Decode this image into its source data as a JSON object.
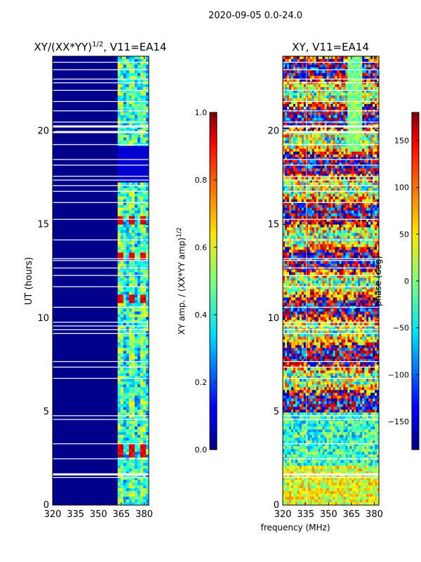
{
  "suptitle": "2020-09-05 0.0-24.0",
  "chart_data": [
    {
      "type": "heatmap",
      "title": "XY/(XX*YY)1/2, V11=EA14",
      "title_main": "XY/(XX*YY)",
      "title_sup": "1/2",
      "title_rest": ", V11=EA14",
      "xlabel": "",
      "ylabel": "UT (hours)",
      "xlim": [
        320,
        383
      ],
      "ylim": [
        0,
        24
      ],
      "xticks": [
        320,
        335,
        350,
        365,
        380
      ],
      "yticks": [
        0,
        5,
        10,
        15,
        20
      ],
      "colorbar": {
        "label": "XY amp. / (XX*YY amp)1/2",
        "label_main": "XY amp. / (XX*YY amp)",
        "label_sup": "1/2",
        "range": [
          0.0,
          1.0
        ],
        "ticks": [
          "0.0",
          "0.2",
          "0.4",
          "0.6",
          "0.8",
          "1.0"
        ]
      },
      "colormap": "jet"
    },
    {
      "type": "heatmap",
      "title": "XY, V11=EA14",
      "xlabel": "frequency (MHz)",
      "ylabel": "",
      "xlim": [
        320,
        383
      ],
      "ylim": [
        0,
        24
      ],
      "xticks": [
        320,
        335,
        350,
        365,
        380
      ],
      "yticks": [
        0,
        5,
        10,
        15,
        20
      ],
      "colorbar": {
        "label": "phase (deg)",
        "range": [
          -180,
          180
        ],
        "ticks": [
          "−150",
          "−100",
          "−50",
          "0",
          "50",
          "100",
          "150"
        ]
      },
      "colormap": "jet"
    }
  ]
}
